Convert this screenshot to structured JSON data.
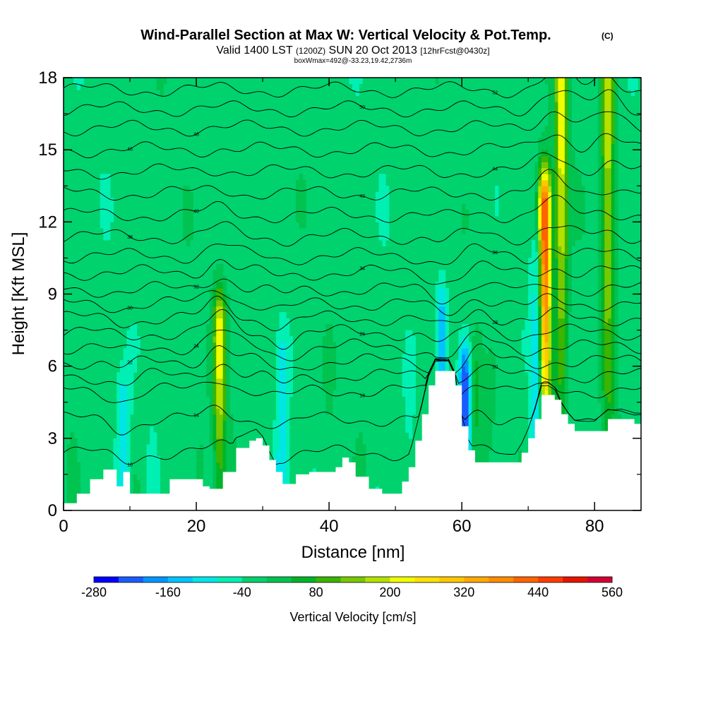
{
  "chart_data": {
    "type": "heatmap",
    "title": "Wind-Parallel Section at Max W: Vertical Velocity & Pot.Temp.",
    "title_mark": "(C)",
    "subtitle": {
      "valid_label": "Valid 1400 LST",
      "utc": "(1200Z)",
      "date": "SUN 20 Oct 2013",
      "forecast": "[12hrFcst@0430z]"
    },
    "info_line": "boxWmax=492@-33.23,19.42,2736m",
    "xlabel": "Distance [nm]",
    "ylabel": "Height [Kft MSL]",
    "xlim": [
      0,
      87
    ],
    "ylim": [
      0,
      18
    ],
    "x_ticks": [
      "0",
      "20",
      "40",
      "60",
      "80"
    ],
    "y_ticks": [
      "0",
      "3",
      "6",
      "9",
      "12",
      "15",
      "18"
    ],
    "colorbar": {
      "label": "Vertical Velocity [cm/s]",
      "min": -280,
      "max": 560,
      "step": 40,
      "tick_labels": [
        "-280",
        "-160",
        "-40",
        "80",
        "200",
        "320",
        "440",
        "560"
      ],
      "colors": [
        "#0000ff",
        "#1a5cff",
        "#0096ff",
        "#00c3ff",
        "#00e6e6",
        "#00f0b4",
        "#00d26e",
        "#00c350",
        "#00b428",
        "#3cb400",
        "#78c800",
        "#b4e100",
        "#f0ff00",
        "#ffe100",
        "#ffc800",
        "#ffaa00",
        "#ff8c00",
        "#ff6400",
        "#ff3c00",
        "#e61400",
        "#d20032"
      ]
    },
    "background_value": -20,
    "updraft_cores": [
      {
        "x_nm": 23.5,
        "top_kft": 7.5,
        "peak_cms": 220
      },
      {
        "x_nm": 72.5,
        "top_kft": 12.5,
        "peak_cms": 492
      },
      {
        "x_nm": 75.0,
        "top_kft": 18,
        "peak_cms": 230
      },
      {
        "x_nm": 82.0,
        "top_kft": 18,
        "peak_cms": 200
      },
      {
        "x_nm": 62.0,
        "top_kft": 5.5,
        "peak_cms": 60
      }
    ],
    "downdraft_cores": [
      {
        "x_nm": 9.0,
        "top_kft": 4.0,
        "min_cms": -110
      },
      {
        "x_nm": 33.0,
        "top_kft": 6.5,
        "min_cms": -90
      },
      {
        "x_nm": 57.0,
        "top_kft": 8.0,
        "min_cms": -150
      },
      {
        "x_nm": 60.5,
        "top_kft": 5.5,
        "min_cms": -230
      },
      {
        "x_nm": 71.5,
        "top_kft": 10.0,
        "min_cms": -140
      }
    ],
    "terrain": {
      "x_nm": [
        0,
        2,
        4,
        6,
        8,
        9,
        10,
        12,
        14,
        16,
        18,
        20,
        21,
        22,
        24,
        26,
        28,
        29,
        30,
        31,
        32,
        33,
        35,
        37,
        39,
        41,
        42,
        43,
        44,
        46,
        48,
        50,
        51,
        52,
        53,
        54,
        55,
        56,
        57,
        58,
        59,
        60,
        61,
        62,
        64,
        66,
        68,
        69,
        70,
        71,
        72,
        73,
        74,
        75,
        76,
        77,
        78,
        80,
        82,
        84,
        86,
        87
      ],
      "height_kft": [
        0.3,
        0.7,
        1.3,
        1.7,
        1.0,
        1.6,
        0.7,
        0.7,
        0.7,
        1.3,
        1.3,
        1.3,
        1.0,
        0.9,
        1.6,
        2.6,
        2.9,
        3.0,
        2.7,
        2.1,
        1.6,
        1.1,
        1.5,
        1.6,
        1.6,
        1.8,
        2.2,
        2.0,
        1.4,
        0.9,
        0.7,
        0.7,
        1.2,
        1.8,
        2.9,
        4.0,
        5.2,
        5.8,
        5.8,
        5.8,
        5.2,
        3.5,
        2.5,
        2.0,
        2.0,
        2.0,
        2.0,
        2.4,
        3.0,
        3.8,
        4.8,
        4.8,
        4.6,
        4.0,
        3.6,
        3.3,
        3.3,
        3.3,
        3.8,
        3.8,
        3.6,
        3.6
      ]
    },
    "isentropes": [
      {
        "label": "10",
        "base_kft": 2.4
      },
      {
        "label": "14",
        "base_kft": 3.8
      },
      {
        "label": "18",
        "base_kft": 5.0
      },
      {
        "label": "20",
        "base_kft": 5.6
      },
      {
        "label": "22",
        "base_kft": 6.2
      },
      {
        "label": "24",
        "base_kft": 6.8
      },
      {
        "label": "26",
        "base_kft": 7.4
      },
      {
        "label": "28",
        "base_kft": 8.0
      },
      {
        "label": "30",
        "base_kft": 8.6
      },
      {
        "label": "32",
        "base_kft": 9.2
      },
      {
        "label": "34",
        "base_kft": 9.9
      },
      {
        "label": "36",
        "base_kft": 10.6
      },
      {
        "label": "38",
        "base_kft": 11.4
      },
      {
        "label": "40",
        "base_kft": 12.3
      },
      {
        "label": "42",
        "base_kft": 13.2
      },
      {
        "label": "44",
        "base_kft": 14.1
      },
      {
        "label": "46",
        "base_kft": 15.0
      },
      {
        "label": "48",
        "base_kft": 15.9
      },
      {
        "label": "50",
        "base_kft": 16.7
      },
      {
        "label": "52",
        "base_kft": 17.5
      }
    ]
  }
}
